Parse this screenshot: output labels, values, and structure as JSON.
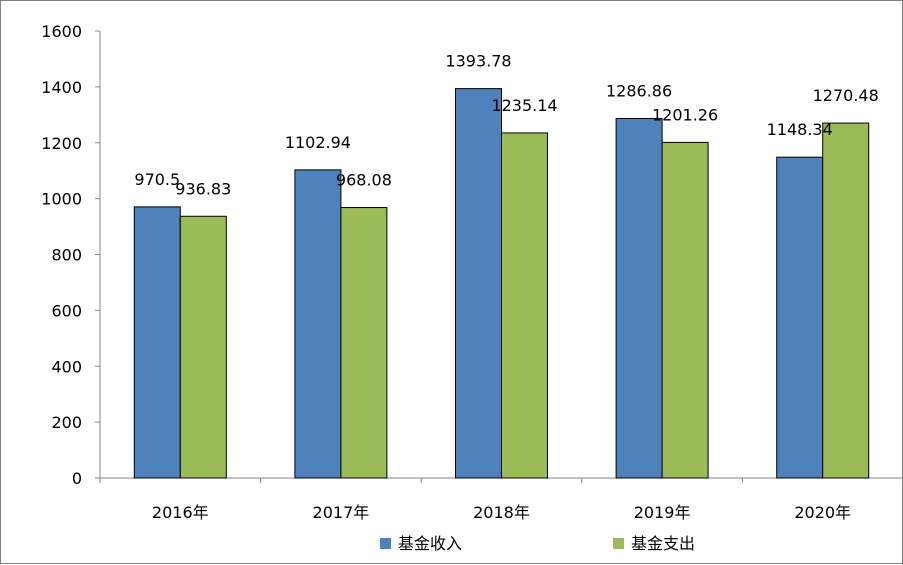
{
  "chart_data": {
    "type": "bar",
    "categories": [
      "2016年",
      "2017年",
      "2018年",
      "2019年",
      "2020年"
    ],
    "series": [
      {
        "name": "基金收入",
        "values": [
          970.5,
          1102.94,
          1393.78,
          1286.86,
          1148.34
        ],
        "color": "#4f81bd"
      },
      {
        "name": "基金支出",
        "values": [
          936.83,
          968.08,
          1235.14,
          1201.26,
          1270.48
        ],
        "color": "#9bbb59"
      }
    ],
    "value_labels": [
      [
        "970.5",
        "1102.94",
        "1393.78",
        "1286.86",
        "1148.34"
      ],
      [
        "936.83",
        "968.08",
        "1235.14",
        "1201.26",
        "1270.48"
      ]
    ],
    "title": "",
    "xlabel": "",
    "ylabel": "",
    "ylim": [
      0,
      1600
    ],
    "yticks": [
      "0",
      "200",
      "400",
      "600",
      "800",
      "1000",
      "1200",
      "1400",
      "1600"
    ],
    "grid": false,
    "legend_position": "bottom",
    "bar_border_color": "#000000"
  }
}
